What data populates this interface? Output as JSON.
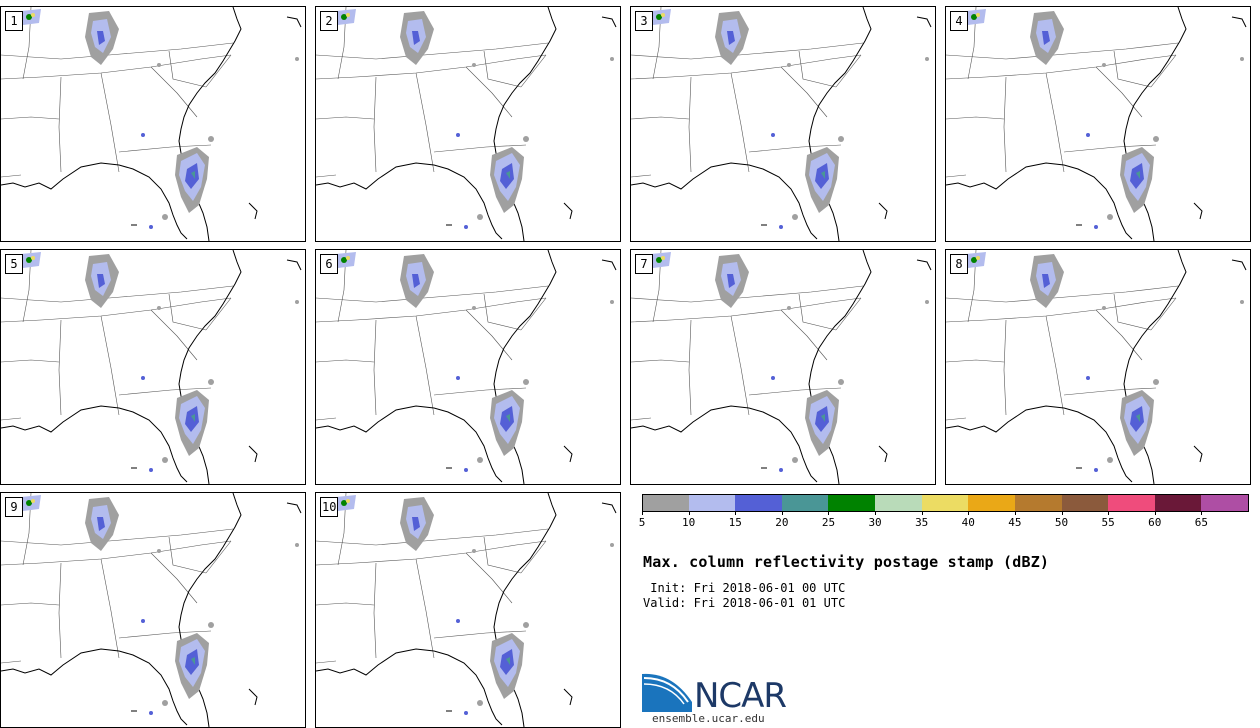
{
  "panels": [
    {
      "label": "1"
    },
    {
      "label": "2"
    },
    {
      "label": "3"
    },
    {
      "label": "4"
    },
    {
      "label": "5"
    },
    {
      "label": "6"
    },
    {
      "label": "7"
    },
    {
      "label": "8"
    },
    {
      "label": "9"
    },
    {
      "label": "10"
    }
  ],
  "colorbar": {
    "ticks": [
      "5",
      "10",
      "15",
      "20",
      "25",
      "30",
      "35",
      "40",
      "45",
      "50",
      "55",
      "60",
      "65"
    ],
    "colors": [
      "#a0a0a0",
      "#b3bcee",
      "#5460d6",
      "#4a9696",
      "#008200",
      "#b9dbb9",
      "#ecdc63",
      "#eaa817",
      "#b57a2e",
      "#8b5a3c",
      "#ef4c7c",
      "#6a1838",
      "#ae4ea4"
    ]
  },
  "title": "Max. column reflectivity postage stamp (dBZ)",
  "init": " Init: Fri 2018-06-01 00 UTC",
  "valid": "Valid: Fri 2018-06-01 01 UTC",
  "logo": {
    "text": "NCAR",
    "url": "ensemble.ucar.edu"
  }
}
